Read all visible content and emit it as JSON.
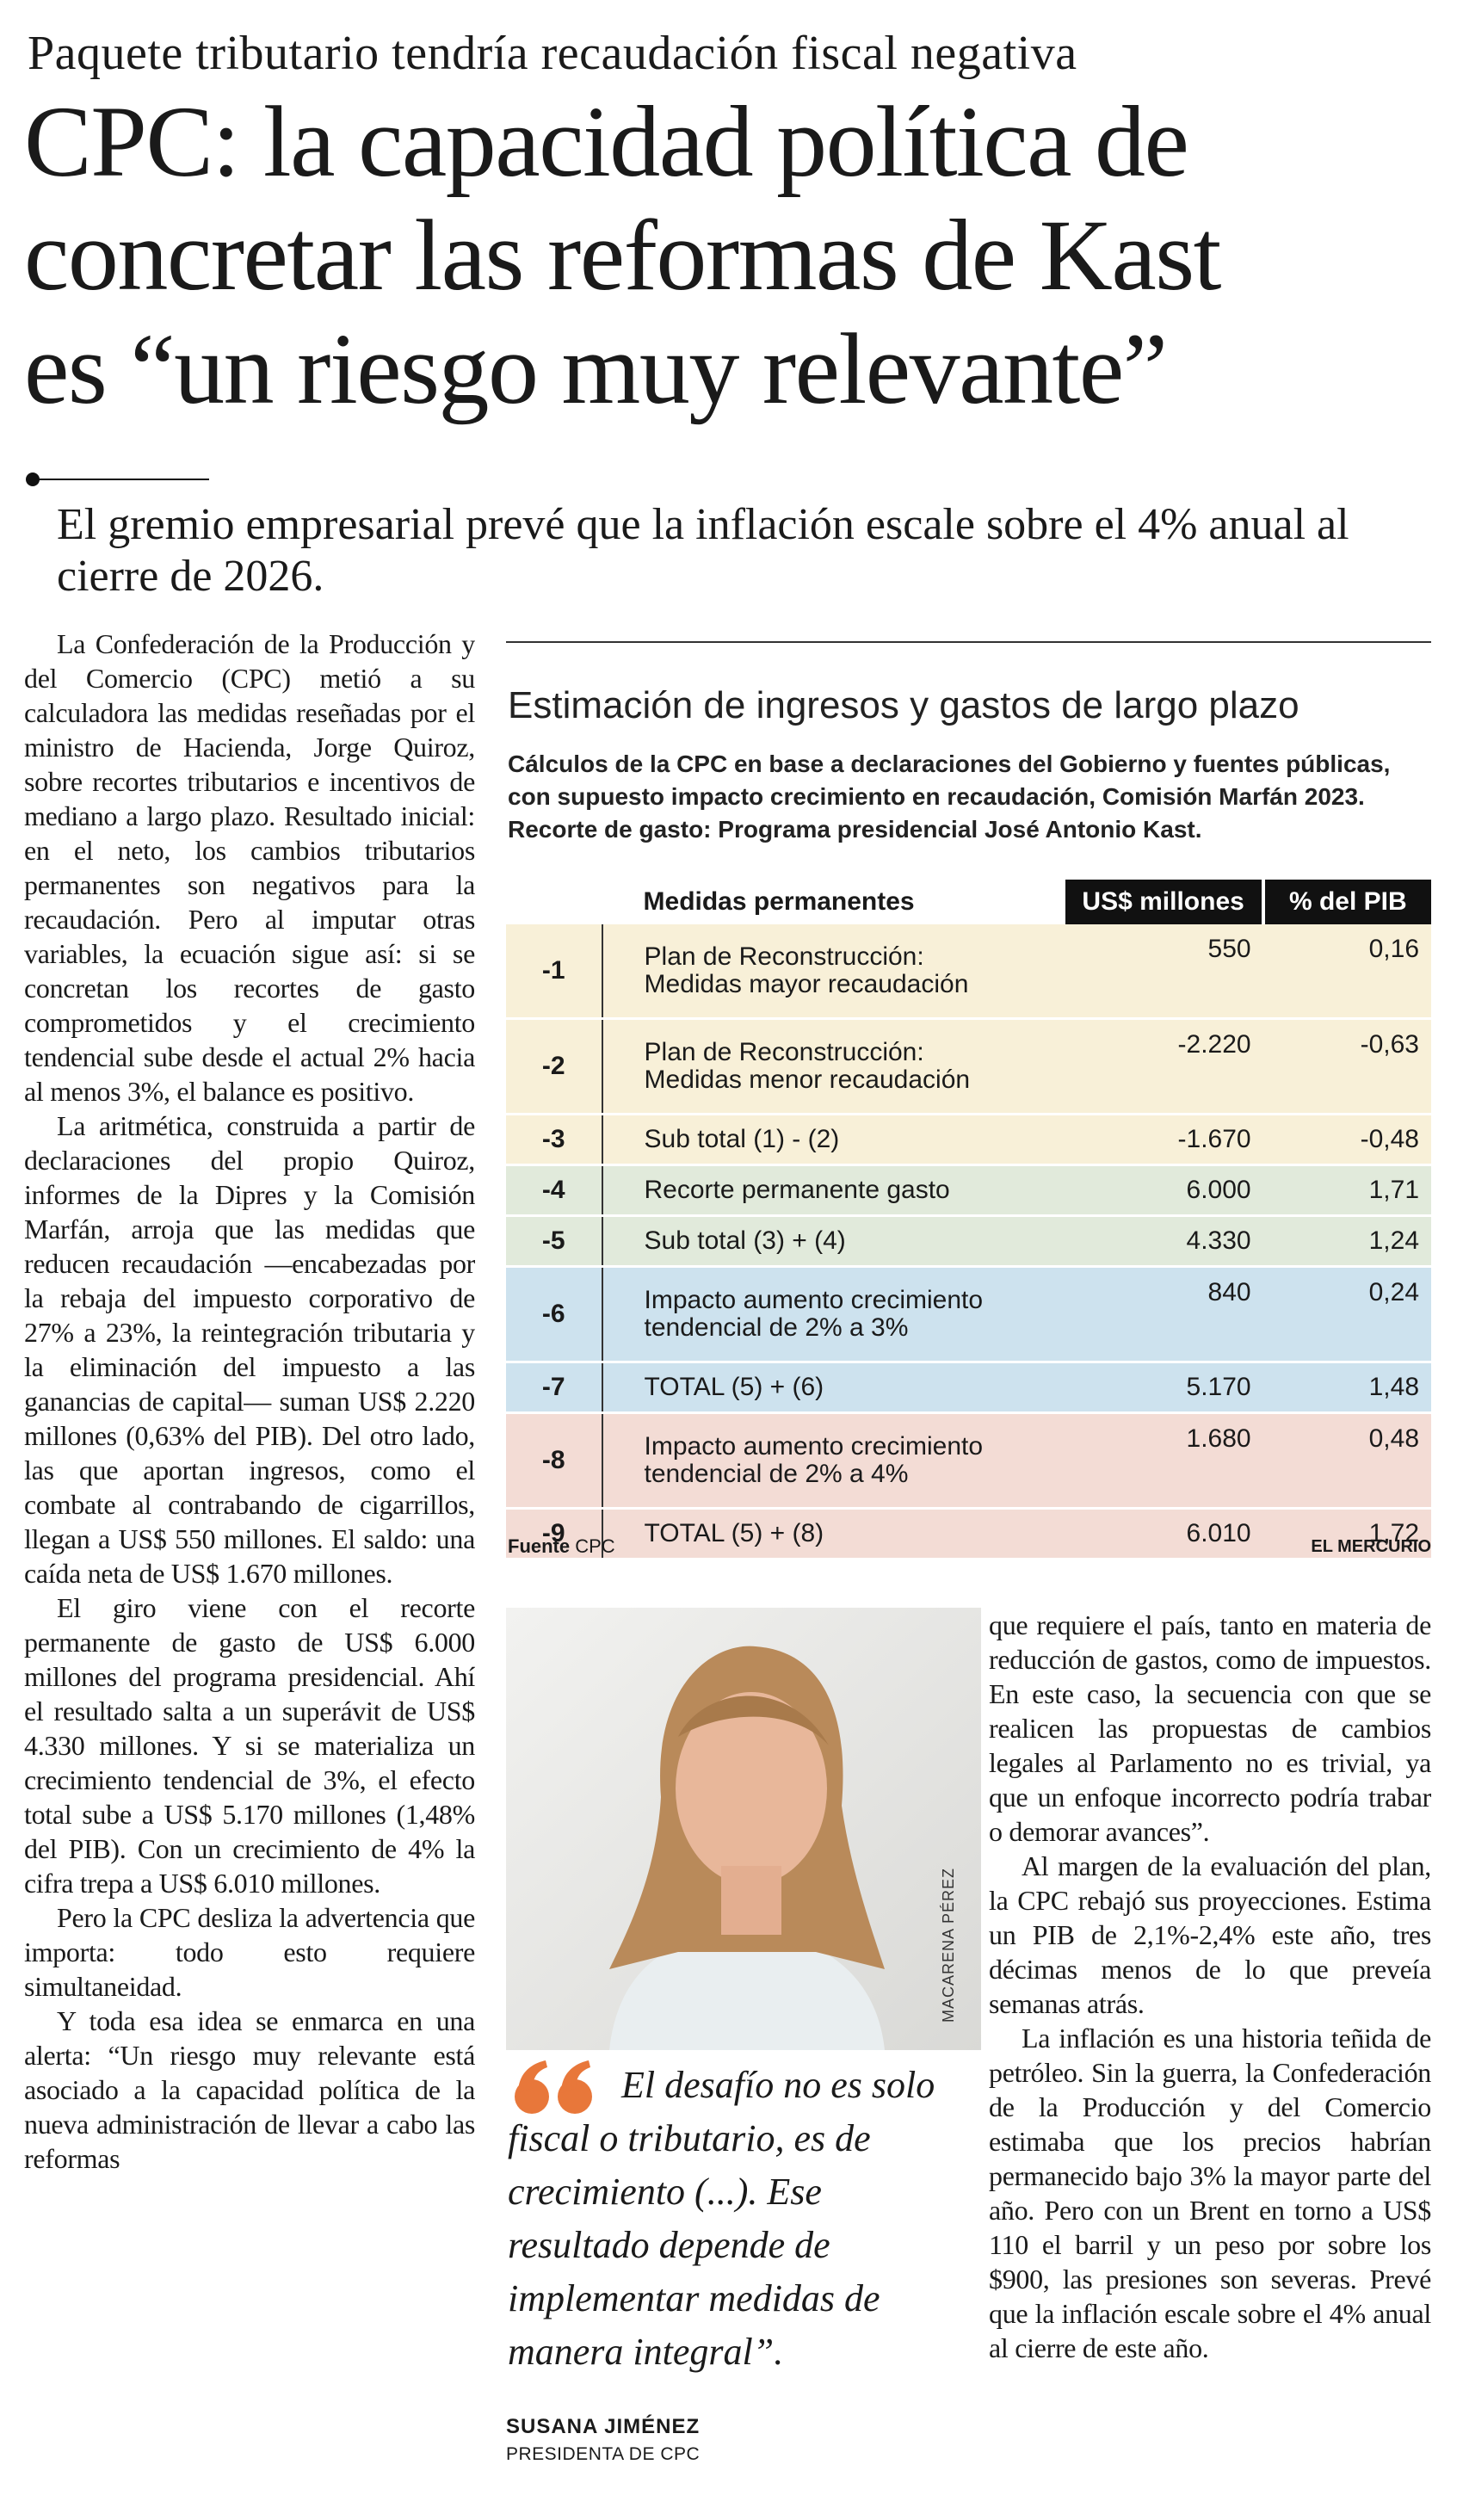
{
  "header": {
    "kicker": "Paquete tributario tendría recaudación fiscal negativa",
    "title_lines": [
      "CPC: la capacidad política de",
      "concretar las reformas de Kast",
      "es “un riesgo muy relevante”"
    ],
    "deck": "El gremio empresarial prevé que la inflación escale sobre el 4% anual al cierre de 2026."
  },
  "article": {
    "left_column": [
      "La Confederación de la Producción y del Comercio (CPC) metió a su calculadora las medidas reseñadas por el ministro de Hacienda, Jorge Quiroz, sobre recortes tributarios e incentivos de mediano a largo plazo. Resultado inicial: en el neto, los cambios tributarios permanentes son negativos para la recaudación. Pero al imputar otras variables, la ecuación sigue así: si se concretan los recortes de gasto comprometidos y el crecimiento tendencial sube desde el actual 2% hacia al menos 3%, el balance es positivo.",
      "La aritmética, construida a partir de declaraciones del propio Quiroz, informes de la Dipres y la Comisión Marfán, arroja que las medidas que reducen recaudación —encabezadas por la rebaja del impuesto corporativo de 27% a 23%, la reintegración tributaria y la eliminación del impuesto a las ganancias de capital— suman US$ 2.220 millones (0,63% del PIB). Del otro lado, las que aportan ingresos, como el combate al contrabando de cigarrillos, llegan a US$ 550 millones. El saldo: una caída neta de US$ 1.670 millones.",
      "El giro viene con el recorte permanente de gasto de US$ 6.000 millones del programa presidencial. Ahí el resultado salta a un superávit de US$ 4.330 millones. Y si se materializa un crecimiento tendencial de 3%, el efecto total sube a US$ 5.170 millones (1,48% del PIB). Con un crecimiento de 4% la cifra trepa a US$ 6.010 millones.",
      "Pero la CPC desliza la advertencia que importa: todo esto requiere simultaneidad.",
      "Y toda esa idea se enmarca en una alerta: “Un riesgo muy relevante está asociado a la capacidad política de la nueva administración de llevar a cabo las reformas"
    ],
    "right_column": [
      "que requiere el país, tanto en materia de reducción de gastos, como de impuestos. En este caso, la secuencia con que se realicen las propuestas de cambios legales al Parlamento no es trivial, ya que un enfoque incorrecto podría trabar o demorar avances”.",
      "Al margen de la evaluación del plan, la CPC rebajó sus proyecciones. Estima un PIB de 2,1%-2,4% este año, tres décimas menos de lo que preveía semanas atrás.",
      "La inflación es una historia teñida de petróleo. Sin la guerra, la Confederación de la Producción y del Comercio estimaba que los precios habrían permanecido bajo 3% la mayor parte del año. Pero con un Brent en torno a US$ 110 el barril y un peso por sobre los $900, las presiones son severas. Prevé que la inflación escale sobre el 4% anual al cierre de este año."
    ]
  },
  "table": {
    "title": "Estimación de ingresos y gastos de largo plazo",
    "subtitle_lines": [
      "Cálculos de la CPC en base a declaraciones del Gobierno y fuentes públicas,",
      "con supuesto impacto crecimiento en recaudación, Comisión Marfán 2023.",
      "Recorte de gasto: Programa presidencial José Antonio Kast."
    ],
    "headers": [
      "Medidas permanentes",
      "US$ millones",
      "% del PIB"
    ],
    "rows": [
      {
        "num": "-1",
        "medida": [
          "Plan de Reconstrucción:",
          "Medidas mayor recaudación"
        ],
        "usd": "550",
        "pib": "0,16"
      },
      {
        "num": "-2",
        "medida": [
          "Plan de Reconstrucción:",
          "Medidas menor recaudación"
        ],
        "usd": "-2.220",
        "pib": "-0,63"
      },
      {
        "num": "-3",
        "medida": [
          "Sub total (1) - (2)"
        ],
        "usd": "-1.670",
        "pib": "-0,48"
      },
      {
        "num": "-4",
        "medida": [
          "Recorte permanente gasto"
        ],
        "usd": "6.000",
        "pib": "1,71"
      },
      {
        "num": "-5",
        "medida": [
          "Sub total (3) + (4)"
        ],
        "usd": "4.330",
        "pib": "1,24"
      },
      {
        "num": "-6",
        "medida": [
          "Impacto aumento crecimiento",
          "tendencial de 2% a 3%"
        ],
        "usd": "840",
        "pib": "0,24"
      },
      {
        "num": "-7",
        "medida": [
          "TOTAL (5) + (6)"
        ],
        "usd": "5.170",
        "pib": "1,48"
      },
      {
        "num": "-8",
        "medida": [
          "Impacto aumento crecimiento",
          "tendencial de 2% a 4%"
        ],
        "usd": "1.680",
        "pib": "0,48"
      },
      {
        "num": "-9",
        "medida": [
          "TOTAL (5) + (8)"
        ],
        "usd": "6.010",
        "pib": "1,72"
      }
    ],
    "source": {
      "label": "Fuente",
      "value": "CPC"
    },
    "credit": "EL MERCURIO"
  },
  "photo": {
    "credit": "MACARENA PÉREZ"
  },
  "quote": {
    "text": "El desafío no es solo fiscal o tributario, es de crecimiento (...). Ese resultado depende de implementar medidas de manera integral”.",
    "author": "SUSANA JIMÉNEZ",
    "role": "PRESIDENTA DE CPC"
  }
}
